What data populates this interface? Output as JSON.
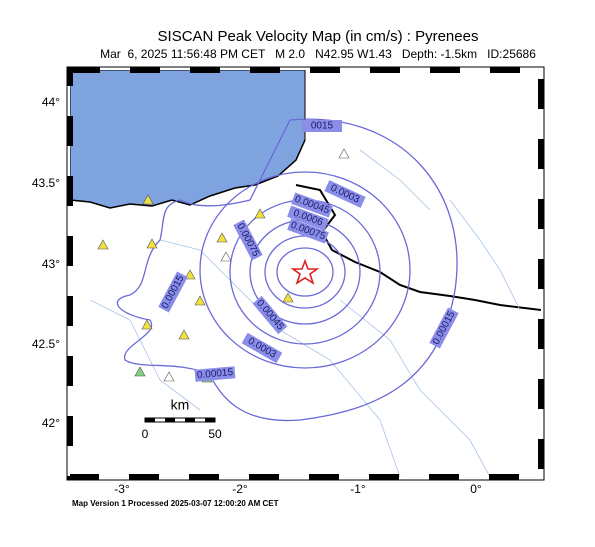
{
  "title": "SISCAN Peak Velocity Map (in cm/s) : Pyrenees",
  "subtitle": "Mar  6, 2025 11:56:48 PM CET   M 2.0   N42.95 W1.43   Depth: -1.5km   ID:25686",
  "lat_labels": [
    "44°",
    "43.5°",
    "43°",
    "42.5°",
    "42°"
  ],
  "lon_labels": [
    "-3°",
    "-2°",
    "-1°",
    "0°"
  ],
  "contour_labels": [
    "0015",
    "0.0003",
    "0.00045",
    "0.0006",
    "0.00075",
    "0.00075",
    "0.00015",
    "0.00045",
    "0.0003",
    "0.00015",
    "0.00015"
  ],
  "scale_bar": {
    "unit": "km",
    "start": "0",
    "end": "50"
  },
  "footer": "Map Version 1 Processed 2025-03-07 12:00:20 AM CET"
}
